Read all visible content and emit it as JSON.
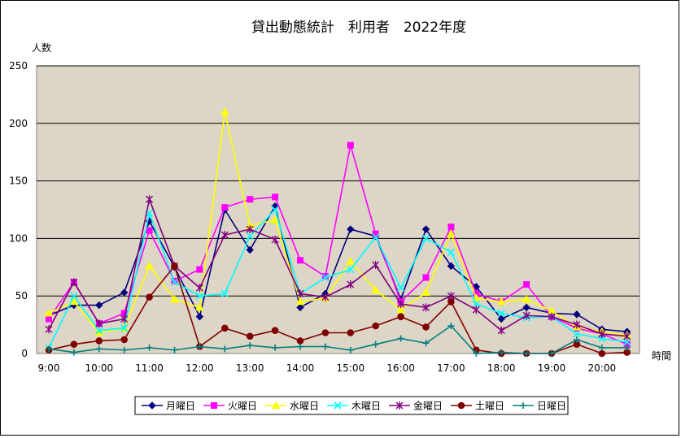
{
  "chart_data": {
    "type": "line",
    "title": "貸出動態統計　利用者　2022年度",
    "ylabel": "人数",
    "xlabel": "時間",
    "ylim": [
      0,
      250
    ],
    "yticks": [
      0,
      50,
      100,
      150,
      200,
      250
    ],
    "x": [
      "9:00",
      "9:30",
      "10:00",
      "10:30",
      "11:00",
      "11:30",
      "12:00",
      "12:30",
      "13:00",
      "13:30",
      "14:00",
      "14:30",
      "15:00",
      "15:30",
      "16:00",
      "16:30",
      "17:00",
      "17:30",
      "18:00",
      "18:30",
      "19:00",
      "19:30",
      "20:00",
      "20:30"
    ],
    "x_tick_labels": [
      "9:00",
      "10:00",
      "11:00",
      "12:00",
      "13:00",
      "14:00",
      "15:00",
      "16:00",
      "17:00",
      "18:00",
      "19:00",
      "20:00"
    ],
    "grid": true,
    "plot_background": "#ddd5c5",
    "legend_position": "bottom",
    "series": [
      {
        "name": "月曜日",
        "color": "#000080",
        "marker": "diamond",
        "values": [
          33,
          42,
          42,
          53,
          115,
          75,
          32,
          125,
          90,
          128,
          40,
          52,
          108,
          102,
          47,
          108,
          76,
          58,
          30,
          40,
          35,
          34,
          21,
          19
        ]
      },
      {
        "name": "火曜日",
        "color": "#ff00ff",
        "marker": "square",
        "values": [
          30,
          62,
          26,
          35,
          107,
          63,
          73,
          127,
          134,
          136,
          81,
          67,
          181,
          104,
          45,
          66,
          110,
          52,
          45,
          60,
          32,
          22,
          17,
          8
        ]
      },
      {
        "name": "水曜日",
        "color": "#ffff00",
        "marker": "triangle",
        "values": [
          35,
          45,
          18,
          22,
          76,
          47,
          40,
          210,
          111,
          116,
          45,
          48,
          80,
          55,
          38,
          53,
          104,
          48,
          45,
          47,
          37,
          23,
          19,
          16
        ]
      },
      {
        "name": "木曜日",
        "color": "#00ffff",
        "marker": "x",
        "values": [
          5,
          50,
          20,
          22,
          122,
          62,
          50,
          52,
          102,
          125,
          52,
          66,
          73,
          101,
          57,
          100,
          88,
          43,
          35,
          31,
          32,
          17,
          13,
          10
        ]
      },
      {
        "name": "金曜日",
        "color": "#800080",
        "marker": "asterisk",
        "values": [
          21,
          62,
          26,
          30,
          134,
          76,
          57,
          103,
          108,
          99,
          52,
          49,
          60,
          77,
          43,
          40,
          50,
          38,
          20,
          33,
          32,
          25,
          17,
          15
        ]
      },
      {
        "name": "土曜日",
        "color": "#800000",
        "marker": "circle",
        "values": [
          3,
          8,
          11,
          12,
          49,
          76,
          6,
          22,
          15,
          20,
          11,
          18,
          18,
          24,
          32,
          23,
          45,
          3,
          0,
          0,
          0,
          8,
          0,
          1
        ]
      },
      {
        "name": "日曜日",
        "color": "#008080",
        "marker": "plus",
        "values": [
          4,
          1,
          4,
          3,
          5,
          3,
          6,
          4,
          7,
          5,
          6,
          6,
          3,
          8,
          13,
          9,
          24,
          0,
          1,
          0,
          0,
          12,
          5,
          5
        ]
      }
    ]
  }
}
